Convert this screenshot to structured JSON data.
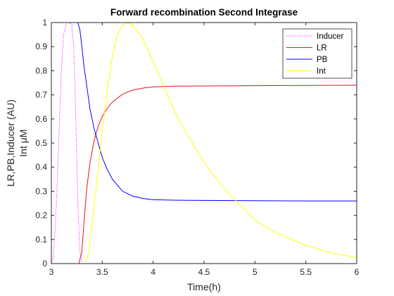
{
  "chart_data": {
    "type": "line",
    "title": "Forward recombination Second Integrase",
    "xlabel": "Time(h)",
    "ylabel_lines": [
      "LR,PB,Inducer (AU)",
      "Int μM"
    ],
    "xlim": [
      3,
      6
    ],
    "ylim": [
      0,
      1
    ],
    "xticks": [
      3,
      3.5,
      4,
      4.5,
      5,
      5.5,
      6
    ],
    "xtick_labels": [
      "3",
      "3.5",
      "4",
      "4.5",
      "5",
      "5.5",
      "6"
    ],
    "yticks": [
      0,
      0.1,
      0.2,
      0.3,
      0.4,
      0.5,
      0.6,
      0.7,
      0.8,
      0.9,
      1
    ],
    "ytick_labels": [
      "0",
      "0.1",
      "0.2",
      "0.3",
      "0.4",
      "0.5",
      "0.6",
      "0.7",
      "0.8",
      "0.9",
      "1"
    ],
    "grid": false,
    "legend_position": "top-right",
    "series": [
      {
        "name": "Inducer",
        "color": "#ff00ff",
        "style": "dotted",
        "x": [
          3.0,
          3.02,
          3.05,
          3.08,
          3.1,
          3.12,
          3.15,
          3.18,
          3.2,
          3.22,
          3.24,
          3.26,
          3.28,
          3.3,
          3.5,
          4.0,
          5.0,
          6.0
        ],
        "y": [
          0.0,
          0.02,
          0.25,
          0.6,
          0.82,
          0.95,
          1.0,
          1.0,
          0.99,
          0.9,
          0.6,
          0.25,
          0.05,
          0.0,
          0.0,
          0.0,
          0.0,
          0.0
        ]
      },
      {
        "name": "LR",
        "color": "#e81123",
        "style": "solid",
        "x": [
          3.0,
          3.27,
          3.3,
          3.32,
          3.35,
          3.38,
          3.42,
          3.46,
          3.5,
          3.55,
          3.6,
          3.7,
          3.8,
          3.9,
          4.0,
          4.2,
          4.5,
          5.0,
          5.5,
          6.0
        ],
        "y": [
          0.0,
          0.0,
          0.05,
          0.17,
          0.32,
          0.42,
          0.51,
          0.57,
          0.61,
          0.645,
          0.67,
          0.703,
          0.72,
          0.728,
          0.733,
          0.736,
          0.737,
          0.738,
          0.739,
          0.74
        ],
        "end_label": "0.74"
      },
      {
        "name": "PB",
        "color": "#0000ff",
        "style": "solid",
        "x": [
          3.0,
          3.26,
          3.28,
          3.3,
          3.32,
          3.35,
          3.38,
          3.42,
          3.46,
          3.5,
          3.55,
          3.6,
          3.7,
          3.8,
          3.9,
          4.0,
          4.2,
          4.5,
          5.0,
          5.5,
          6.0
        ],
        "y": [
          1.0,
          1.0,
          0.97,
          0.9,
          0.82,
          0.73,
          0.64,
          0.56,
          0.5,
          0.44,
          0.39,
          0.35,
          0.3,
          0.28,
          0.27,
          0.265,
          0.263,
          0.262,
          0.261,
          0.26,
          0.26
        ]
      },
      {
        "name": "Int",
        "color": "#ffff00",
        "style": "solid",
        "x": [
          3.0,
          3.33,
          3.36,
          3.4,
          3.45,
          3.5,
          3.55,
          3.6,
          3.65,
          3.7,
          3.75,
          3.8,
          3.9,
          4.0,
          4.1,
          4.2,
          4.3,
          4.5,
          4.7,
          5.0,
          5.2,
          5.5,
          5.8,
          6.0
        ],
        "y": [
          0.0,
          0.0,
          0.03,
          0.16,
          0.35,
          0.55,
          0.72,
          0.86,
          0.95,
          0.99,
          1.0,
          0.99,
          0.93,
          0.84,
          0.74,
          0.64,
          0.56,
          0.42,
          0.31,
          0.18,
          0.13,
          0.075,
          0.04,
          0.025
        ]
      }
    ]
  }
}
